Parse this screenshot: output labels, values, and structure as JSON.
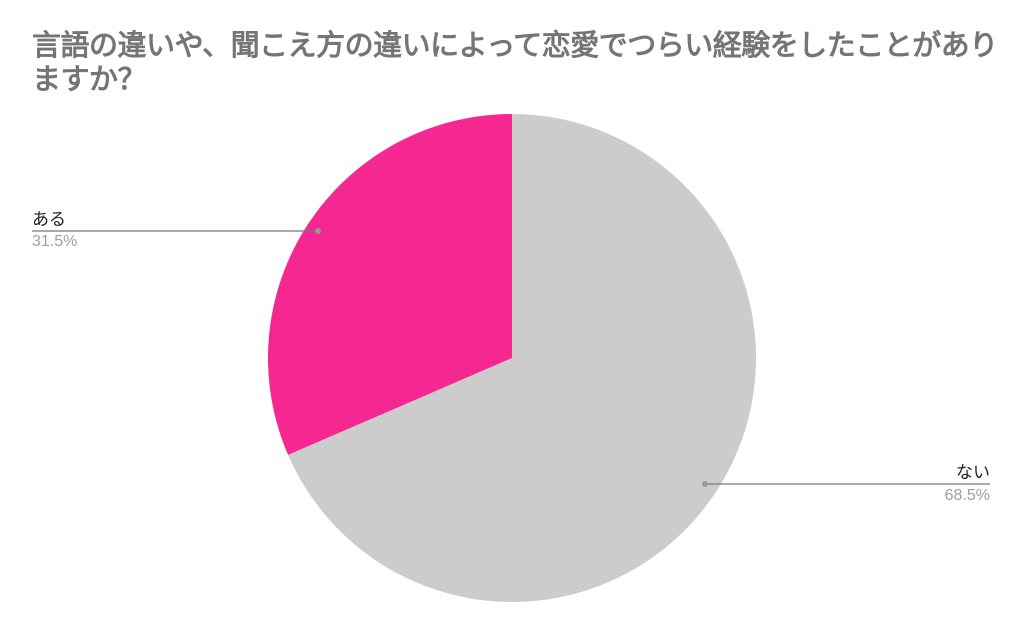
{
  "chart_data": {
    "type": "pie",
    "title": "言語の違いや、聞こえ方の違いによって恋愛でつらい経験をしたことがありますか？",
    "slices": [
      {
        "label": "ない",
        "value": 68.5,
        "display": "68.5%",
        "color": "#cccccc"
      },
      {
        "label": "ある",
        "value": 31.5,
        "display": "31.5%",
        "color": "#f52891"
      }
    ],
    "start_angle": "top",
    "direction": "clockwise",
    "legend": "none"
  }
}
